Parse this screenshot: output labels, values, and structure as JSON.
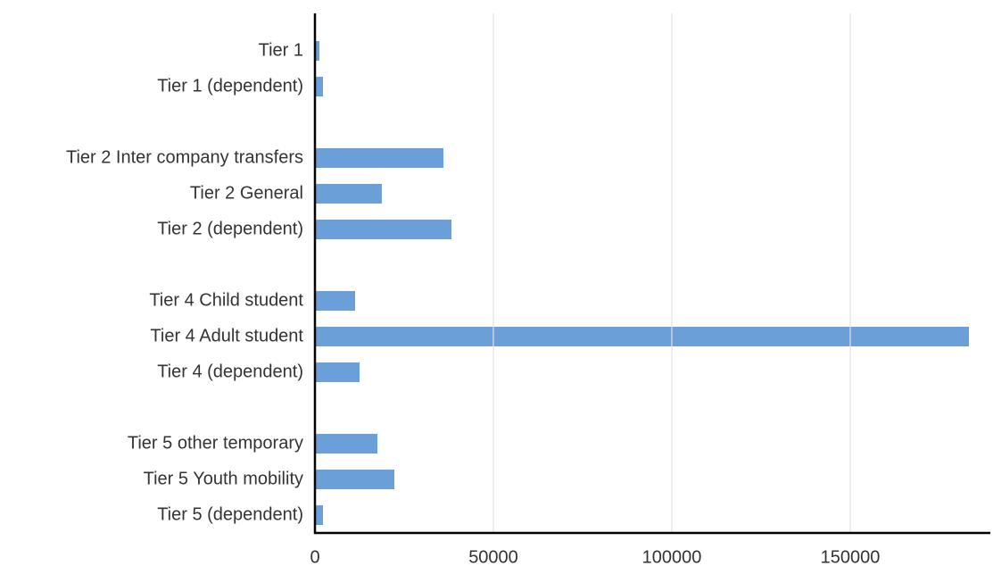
{
  "chart_data": {
    "type": "hbar",
    "categories": [
      "Tier 1",
      "Tier 1 (dependent)",
      null,
      "Tier 2 Inter company transfers",
      "Tier 2 General",
      "Tier 2 (dependent)",
      null,
      "Tier 4 Child student",
      "Tier 4 Adult student",
      "Tier 4 (dependent)",
      null,
      "Tier 5 other temporary",
      "Tier 5 Youth mobility",
      "Tier 5 (dependent)"
    ],
    "values": [
      1250,
      2250,
      null,
      36000,
      18750,
      38250,
      null,
      11250,
      183250,
      12500,
      null,
      17500,
      22250,
      2250
    ],
    "color": "#6a9fd8",
    "xlim": [
      0,
      189000
    ],
    "xticks": [
      0,
      50000,
      100000,
      150000
    ],
    "grid": true
  }
}
